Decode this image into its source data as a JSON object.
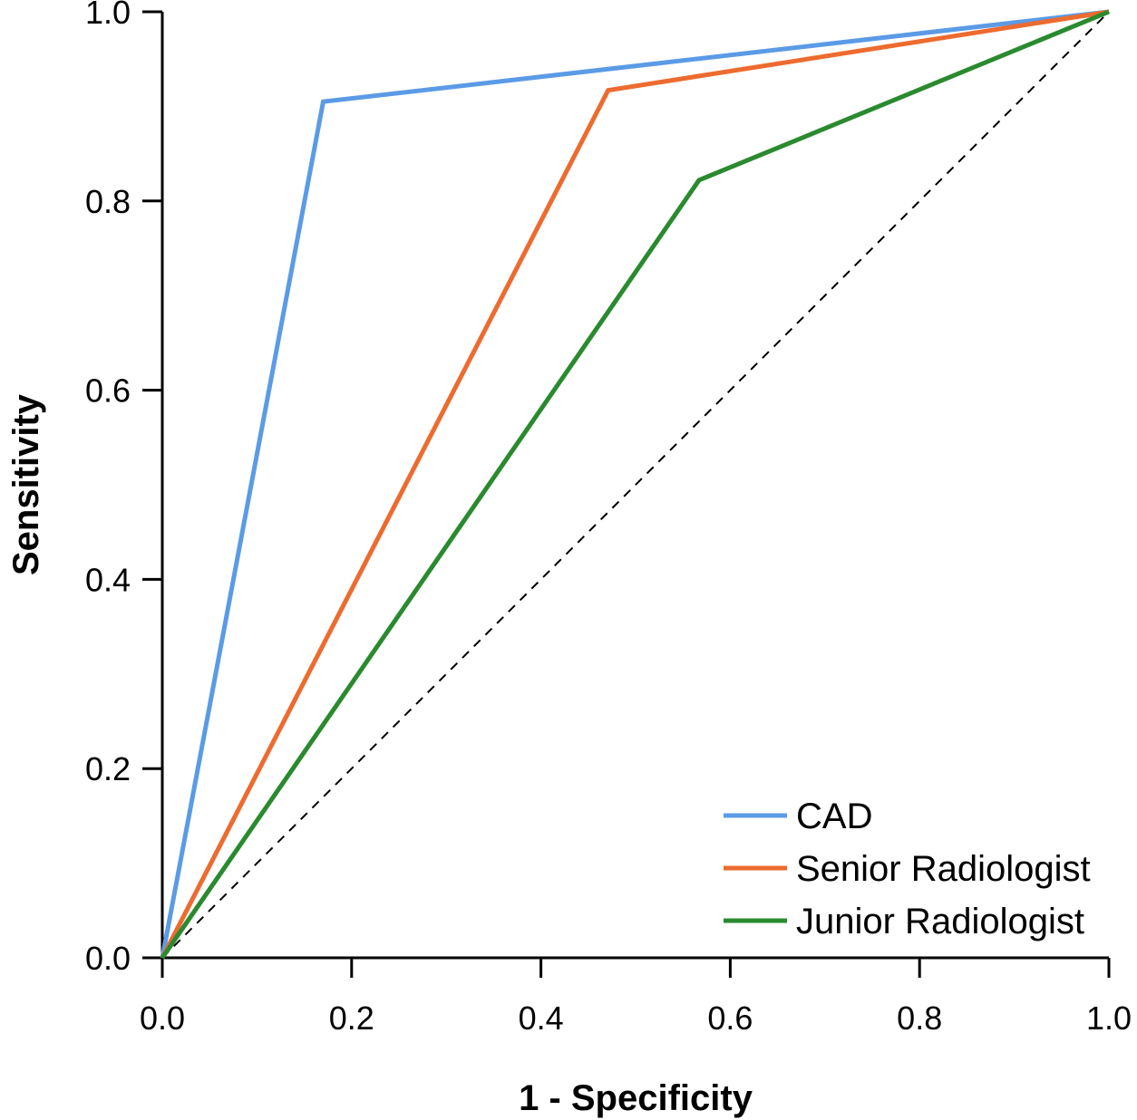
{
  "chart_data": {
    "type": "line",
    "title": "",
    "xlabel": "1 - Specificity",
    "ylabel": "Sensitivity",
    "xlim": [
      0,
      1
    ],
    "ylim": [
      0,
      1
    ],
    "grid": false,
    "legend_position": "bottom-right",
    "x_ticks": [
      "0.0",
      "0.2",
      "0.4",
      "0.6",
      "0.8",
      "1.0"
    ],
    "y_ticks": [
      "0.0",
      "0.2",
      "0.4",
      "0.6",
      "0.8",
      "1.0"
    ],
    "reference_line": {
      "name": "chance",
      "style": "dashed",
      "x": [
        0,
        1
      ],
      "y": [
        0,
        1
      ],
      "color": "#000000"
    },
    "series": [
      {
        "name": "CAD",
        "color": "#5B9BE6",
        "x": [
          0,
          0.17,
          1
        ],
        "y": [
          0,
          0.905,
          1
        ]
      },
      {
        "name": "Senior Radiologist",
        "color": "#ED6B2F",
        "x": [
          0,
          0.471,
          1
        ],
        "y": [
          0,
          0.917,
          1
        ]
      },
      {
        "name": "Junior Radiologist",
        "color": "#2A8A2E",
        "x": [
          0,
          0.567,
          1
        ],
        "y": [
          0,
          0.822,
          1
        ]
      }
    ]
  }
}
